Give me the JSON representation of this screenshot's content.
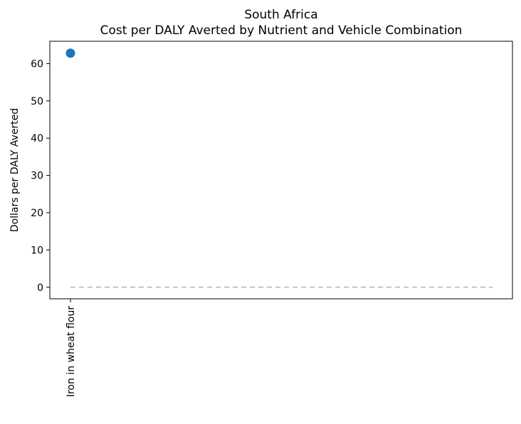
{
  "chart_data": {
    "type": "scatter",
    "title": "South Africa",
    "subtitle": "Cost per DALY Averted by Nutrient and Vehicle Combination",
    "ylabel": "Dollars per DALY Averted",
    "xlabel": "",
    "categories": [
      "Iron in wheat flour"
    ],
    "values": [
      62.8
    ],
    "ylim": [
      -3.1,
      66
    ],
    "yticks": [
      0,
      10,
      20,
      30,
      40,
      50,
      60
    ],
    "reference_line": {
      "y": 0,
      "style": "dashed",
      "color": "#c4c4c4"
    },
    "grid": false,
    "colors": {
      "marker": "#1f77b4",
      "reference": "#c4c4c4",
      "axes": "#000000"
    }
  }
}
